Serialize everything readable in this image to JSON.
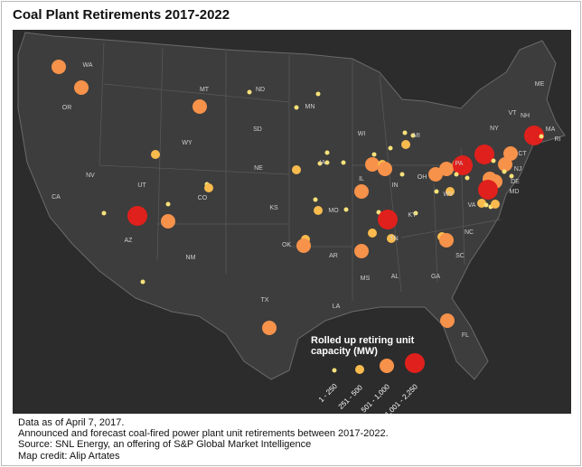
{
  "title": "Coal Plant Retirements 2017-2022",
  "map": {
    "state_labels": [
      "WA",
      "OR",
      "MT",
      "ND",
      "MN",
      "SD",
      "WY",
      "WI",
      "MI",
      "NY",
      "VT",
      "NH",
      "ME",
      "MA",
      "RI",
      "CT",
      "NJ",
      "PA",
      "DE",
      "MD",
      "NV",
      "UT",
      "CO",
      "NE",
      "IA",
      "IL",
      "IN",
      "OH",
      "WV",
      "VA",
      "KY",
      "MO",
      "KS",
      "CA",
      "AZ",
      "NM",
      "OK",
      "AR",
      "TN",
      "NC",
      "SC",
      "MS",
      "AL",
      "GA",
      "TX",
      "LA",
      "FL"
    ],
    "legend": {
      "title": "Rolled up retiring unit capacity (MW)",
      "classes": [
        "1 - 250",
        "251 - 500",
        "501 - 1,000",
        "1,001 - 2,250"
      ]
    }
  },
  "footnotes": [
    "Data as of April 7, 2017.",
    "Announced and forecast coal-fired power plant unit retirements between 2017-2022.",
    "Source: SNL Energy, an offering of S&P Global Market Intelligence",
    "Map credit: Alip Artates"
  ]
}
